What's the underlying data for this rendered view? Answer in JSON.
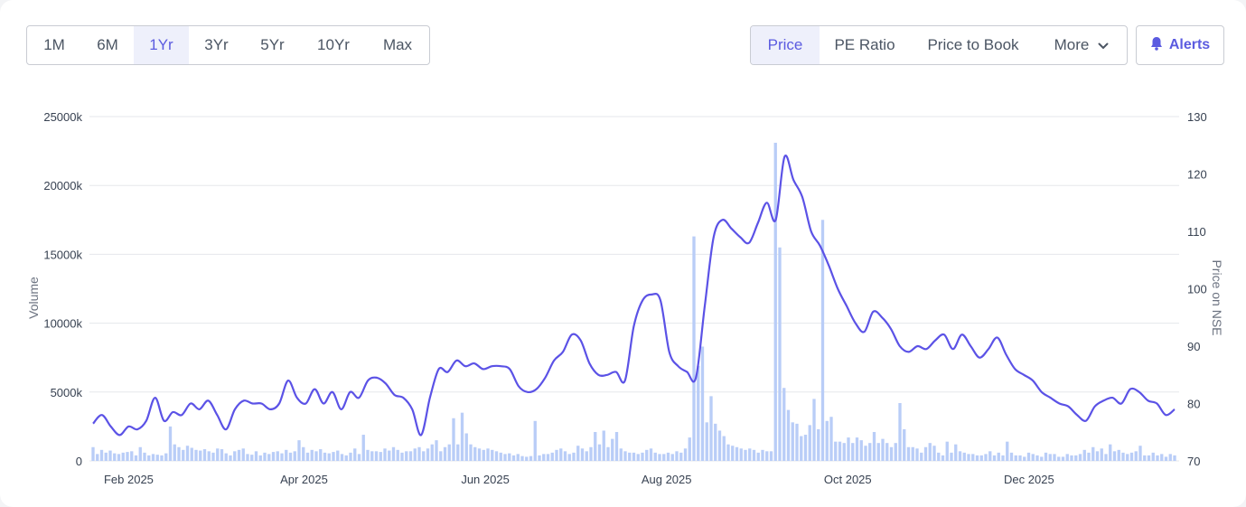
{
  "range_tabs": [
    {
      "label": "1M",
      "active": false
    },
    {
      "label": "6M",
      "active": false
    },
    {
      "label": "1Yr",
      "active": true
    },
    {
      "label": "3Yr",
      "active": false
    },
    {
      "label": "5Yr",
      "active": false
    },
    {
      "label": "10Yr",
      "active": false
    },
    {
      "label": "Max",
      "active": false
    }
  ],
  "metric_tabs": [
    {
      "label": "Price",
      "active": true
    },
    {
      "label": "PE Ratio",
      "active": false
    },
    {
      "label": "Price to Book",
      "active": false
    },
    {
      "label": "More",
      "active": false,
      "icon": "chevron-down-icon"
    }
  ],
  "alerts": {
    "label": "Alerts",
    "icon": "bell-icon"
  },
  "colors": {
    "accent": "#5b5be0",
    "line": "#5b52e6",
    "bar": "#b9cdf7",
    "grid": "#e5e7eb"
  },
  "chart_data": {
    "type": "line",
    "x_ticks": [
      "Feb 2025",
      "Apr 2025",
      "Jun 2025",
      "Aug 2025",
      "Oct 2025",
      "Dec 2025"
    ],
    "y_left": {
      "label": "Volume",
      "ticks": [
        "0",
        "5000k",
        "10000k",
        "15000k",
        "20000k",
        "25000k"
      ],
      "range": [
        0,
        25000
      ]
    },
    "y_right": {
      "label": "Price on NSE",
      "ticks": [
        "70",
        "80",
        "90",
        "100",
        "110",
        "120",
        "130"
      ],
      "range": [
        70,
        130
      ]
    },
    "grid": true,
    "series": [
      {
        "type": "line",
        "axis": "right",
        "unit": "INR",
        "x_start": "2025-01-20",
        "x_end": "2026-01-19",
        "values": [
          76.5,
          78,
          76,
          74.5,
          76,
          75.5,
          77,
          81,
          77,
          78.5,
          78,
          80,
          79,
          80.5,
          78,
          75.5,
          79,
          80.5,
          80,
          80,
          79,
          80,
          84,
          81,
          80,
          82.5,
          80,
          82,
          79,
          82,
          81,
          84,
          84.5,
          83.5,
          81.5,
          81,
          79,
          74.5,
          81,
          86,
          85.5,
          87.5,
          86.5,
          87,
          86,
          86.5,
          86.5,
          86,
          83,
          82,
          82.5,
          84.5,
          87.5,
          89,
          92,
          91,
          87,
          85,
          85,
          85.5,
          84,
          93.5,
          98,
          99,
          98,
          89,
          86.5,
          85.5,
          84.5,
          97,
          109,
          112,
          110.5,
          109,
          108,
          111.5,
          115,
          112,
          123,
          119,
          116,
          110,
          107.5,
          104,
          100,
          97,
          94,
          92.5,
          96,
          95,
          93,
          90,
          89,
          90,
          89.5,
          91,
          92,
          89.5,
          92,
          90,
          88,
          89.5,
          91.5,
          88.5,
          86,
          85,
          84,
          82,
          81,
          80,
          79.5,
          78,
          77,
          79.5,
          80.5,
          81,
          80,
          82.5,
          82,
          80.5,
          80,
          78,
          79
        ]
      },
      {
        "type": "bar",
        "axis": "left",
        "unit": "k shares",
        "values": [
          1000,
          500,
          800,
          600,
          750,
          550,
          500,
          600,
          650,
          700,
          400,
          1000,
          600,
          400,
          500,
          450,
          400,
          550,
          2500,
          1200,
          1000,
          800,
          1100,
          950,
          800,
          750,
          850,
          700,
          600,
          900,
          850,
          550,
          400,
          700,
          800,
          900,
          500,
          450,
          700,
          400,
          600,
          500,
          650,
          700,
          550,
          800,
          600,
          700,
          1500,
          1000,
          600,
          800,
          700,
          850,
          600,
          550,
          650,
          750,
          500,
          400,
          600,
          900,
          500,
          1900,
          800,
          700,
          700,
          650,
          900,
          750,
          1000,
          800,
          600,
          700,
          700,
          900,
          1000,
          700,
          900,
          1200,
          1500,
          700,
          1000,
          1200,
          3100,
          1200,
          3500,
          2000,
          1200,
          1000,
          900,
          800,
          900,
          800,
          700,
          600,
          500,
          550,
          400,
          500,
          350,
          300,
          350,
          2900,
          400,
          500,
          500,
          600,
          800,
          900,
          700,
          500,
          600,
          1100,
          900,
          700,
          1000,
          2100,
          1200,
          2200,
          1000,
          1600,
          2100,
          900,
          700,
          600,
          600,
          500,
          600,
          800,
          900,
          600,
          500,
          500,
          600,
          500,
          700,
          600,
          900,
          1700,
          16300,
          6900,
          8300,
          2800,
          4700,
          2700,
          2200,
          1800,
          1200,
          1100,
          1000,
          900,
          800,
          900,
          800,
          600,
          800,
          700,
          700,
          23100,
          15500,
          5300,
          3700,
          2800,
          2700,
          1800,
          1900,
          2600,
          4500,
          2300,
          17500,
          2900,
          3200,
          1400,
          1400,
          1300,
          1700,
          1300,
          1700,
          1500,
          1100,
          1300,
          2100,
          1300,
          1600,
          1300,
          1000,
          1300,
          4200,
          2300,
          1000,
          1000,
          900,
          600,
          1000,
          1300,
          1100,
          600,
          400,
          1400,
          600,
          1200,
          700,
          600,
          500,
          500,
          400,
          400,
          500,
          700,
          400,
          600,
          400,
          1400,
          600,
          400,
          400,
          300,
          600,
          500,
          400,
          300,
          600,
          500,
          500,
          300,
          300,
          500,
          400,
          400,
          500,
          800,
          600,
          1000,
          700,
          900,
          500,
          1200,
          700,
          800,
          600,
          500,
          600,
          700,
          1100,
          400,
          400,
          600,
          400,
          500,
          300,
          500,
          400
        ]
      }
    ]
  }
}
